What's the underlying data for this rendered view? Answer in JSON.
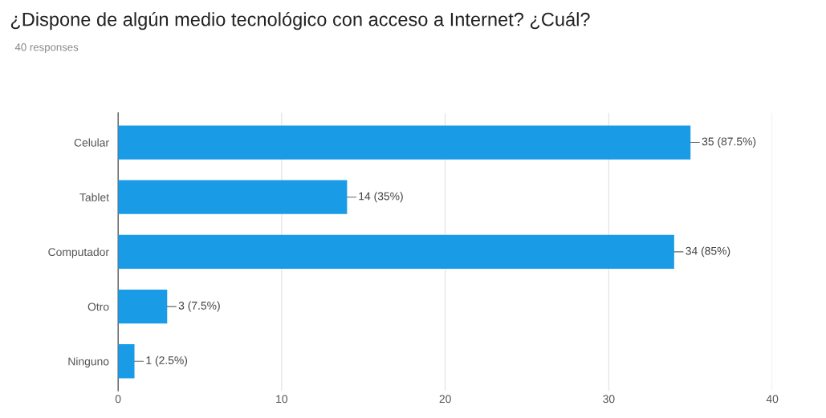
{
  "chart_data": {
    "type": "bar",
    "orientation": "horizontal",
    "title": "¿Dispone de algún medio tecnológico con acceso a Internet? ¿Cuál?",
    "subtitle": "40 responses",
    "categories": [
      "Celular",
      "Tablet",
      "Computador",
      "Otro",
      "Ninguno"
    ],
    "values": [
      35,
      14,
      34,
      3,
      1
    ],
    "value_labels": [
      "35 (87.5%)",
      "14 (35%)",
      "34 (85%)",
      "3 (7.5%)",
      "1 (2.5%)"
    ],
    "color": "#1a9be6",
    "xlim": [
      0,
      40
    ],
    "xticks": [
      0,
      10,
      20,
      30,
      40
    ],
    "grid": "x",
    "legend": false
  }
}
